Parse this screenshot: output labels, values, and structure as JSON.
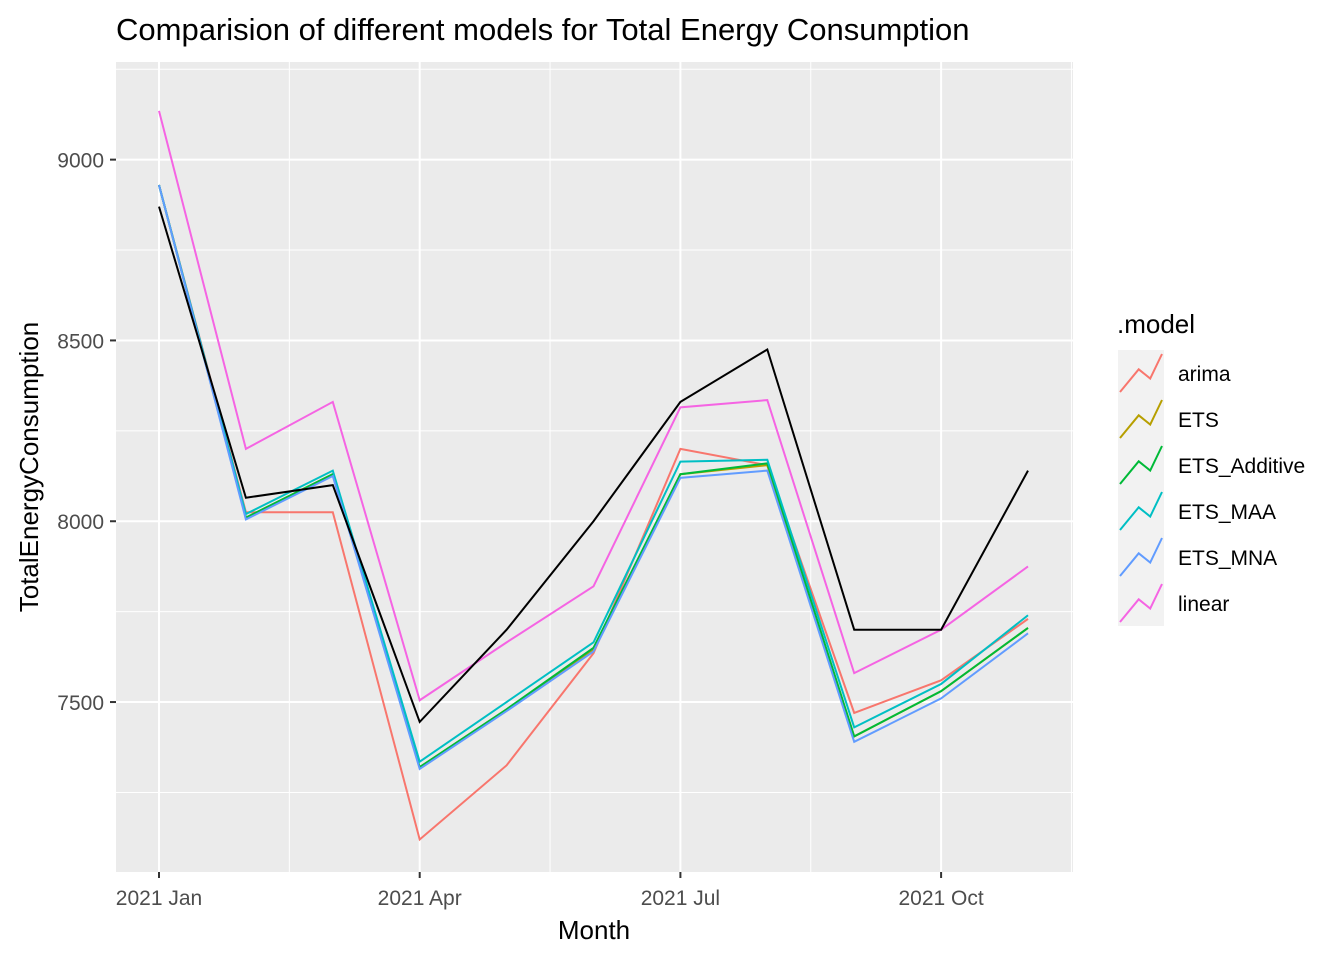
{
  "chart_data": {
    "type": "line",
    "title": "Comparision of different models for Total Energy Consumption",
    "xlabel": "Month",
    "ylabel": "TotalEnergyConsumption",
    "x": [
      "2021-01",
      "2021-02",
      "2021-03",
      "2021-04",
      "2021-05",
      "2021-06",
      "2021-07",
      "2021-08",
      "2021-09",
      "2021-10",
      "2021-11"
    ],
    "x_ticks": [
      {
        "x": "2021-01",
        "label": "2021 Jan"
      },
      {
        "x": "2021-04",
        "label": "2021 Apr"
      },
      {
        "x": "2021-07",
        "label": "2021 Jul"
      },
      {
        "x": "2021-10",
        "label": "2021 Oct"
      }
    ],
    "y_ticks": [
      7500,
      8000,
      8500,
      9000
    ],
    "ylim": [
      7030,
      9270
    ],
    "grid": true,
    "legend_title": ".model",
    "legend_position": "right",
    "actual": {
      "color": "#000000",
      "values": [
        8870,
        8065,
        8100,
        7445,
        7700,
        8000,
        8330,
        8475,
        7700,
        7700,
        8140
      ]
    },
    "series": [
      {
        "name": "arima",
        "color": "#F8766D",
        "values": [
          8930,
          8025,
          8025,
          7120,
          7325,
          7635,
          8200,
          8155,
          7470,
          7560,
          7730
        ]
      },
      {
        "name": "ETS",
        "color": "#B79F00",
        "values": [
          8930,
          8010,
          8130,
          7320,
          7480,
          7645,
          8130,
          8155,
          7405,
          7530,
          7705
        ]
      },
      {
        "name": "ETS_Additive",
        "color": "#00BA38",
        "values": [
          8930,
          8010,
          8130,
          7320,
          7480,
          7650,
          8130,
          8160,
          7405,
          7530,
          7705
        ]
      },
      {
        "name": "ETS_MAA",
        "color": "#00BFC4",
        "values": [
          8930,
          8020,
          8140,
          7335,
          7500,
          7665,
          8165,
          8170,
          7430,
          7550,
          7740
        ]
      },
      {
        "name": "ETS_MNA",
        "color": "#619CFF",
        "values": [
          8930,
          8005,
          8125,
          7315,
          7475,
          7640,
          8120,
          8140,
          7390,
          7510,
          7690
        ]
      },
      {
        "name": "linear",
        "color": "#F564E3",
        "values": [
          9135,
          8200,
          8330,
          7505,
          7665,
          7820,
          8315,
          8335,
          7580,
          7700,
          7875
        ]
      }
    ]
  }
}
